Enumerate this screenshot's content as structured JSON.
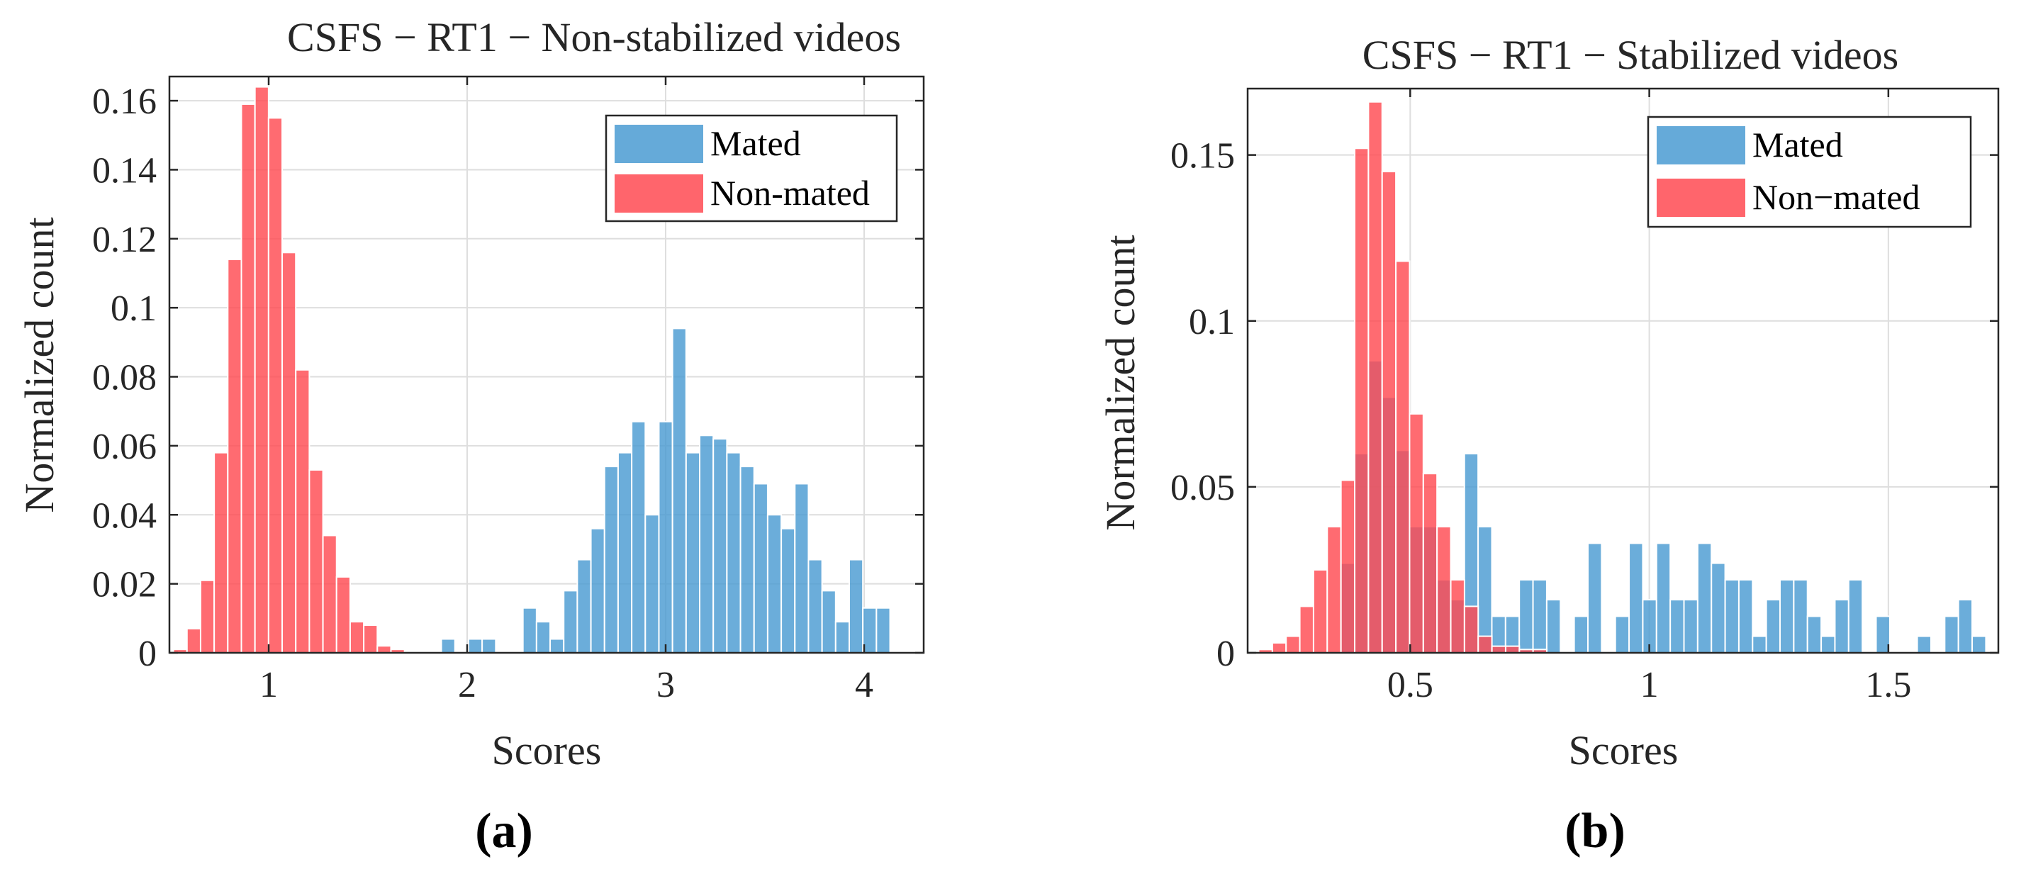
{
  "colors": {
    "mated": "#4a9bd2",
    "non_mated": "#ff4a52",
    "overlap": "#bb2f45"
  },
  "chart_data": [
    {
      "type": "bar",
      "title": "CSFS − RT1 − Non-stabilized videos",
      "xlabel": "Scores",
      "ylabel": "Normalized count",
      "caption": "(a)",
      "xlim": [
        0.5,
        4.3
      ],
      "ylim": [
        0,
        0.167
      ],
      "xticks": [
        1,
        2,
        3,
        4
      ],
      "xtick_labels": [
        "1",
        "2",
        "3",
        "4"
      ],
      "yticks": [
        0,
        0.02,
        0.04,
        0.06,
        0.08,
        0.1,
        0.12,
        0.14,
        0.16
      ],
      "ytick_labels": [
        "0",
        "0.02",
        "0.04",
        "0.06",
        "0.08",
        "0.1",
        "0.12",
        "0.14",
        "0.16"
      ],
      "grid": true,
      "legend_position": "top-right",
      "legend": [
        "Mated",
        "Non-mated"
      ],
      "bin_width": 0.0685,
      "series": [
        {
          "name": "Mated",
          "color": "mated",
          "bin_start": 1.87,
          "values": [
            0.004,
            0,
            0.004,
            0.004,
            0,
            0,
            0.013,
            0.009,
            0.004,
            0.018,
            0.027,
            0.036,
            0.054,
            0.058,
            0.067,
            0.04,
            0.067,
            0.094,
            0.058,
            0.063,
            0.062,
            0.058,
            0.054,
            0.049,
            0.04,
            0.036,
            0.049,
            0.027,
            0.018,
            0.009,
            0.027,
            0.013,
            0.013
          ]
        },
        {
          "name": "Non-mated",
          "color": "non_mated",
          "bin_start": 0.52,
          "values": [
            0.001,
            0.007,
            0.021,
            0.058,
            0.114,
            0.159,
            0.164,
            0.155,
            0.116,
            0.082,
            0.053,
            0.034,
            0.022,
            0.009,
            0.008,
            0.002,
            0.001
          ]
        }
      ]
    },
    {
      "type": "bar",
      "title": "CSFS − RT1 − Stabilized videos",
      "xlabel": "Scores",
      "ylabel": "Normalized count",
      "caption": "(b)",
      "xlim": [
        0.16,
        1.73
      ],
      "ylim": [
        0,
        0.17
      ],
      "xticks": [
        0.5,
        1,
        1.5
      ],
      "xtick_labels": [
        "0.5",
        "1",
        "1.5"
      ],
      "yticks": [
        0,
        0.05,
        0.1,
        0.15
      ],
      "ytick_labels": [
        "0",
        "0.05",
        "0.1",
        "0.15"
      ],
      "grid": true,
      "legend_position": "top-right",
      "legend": [
        "Mated",
        "Non−mated"
      ],
      "bin_width": 0.0287,
      "series": [
        {
          "name": "Mated",
          "color": "mated",
          "bin_start": 0.355,
          "values": [
            0.027,
            0.06,
            0.088,
            0.077,
            0.061,
            0.038,
            0.038,
            0.022,
            0.016,
            0.06,
            0.038,
            0.011,
            0.011,
            0.022,
            0.022,
            0.016,
            0,
            0.011,
            0.033,
            0,
            0.011,
            0.033,
            0.016,
            0.033,
            0.016,
            0.016,
            0.033,
            0.027,
            0.022,
            0.022,
            0.005,
            0.016,
            0.022,
            0.022,
            0.011,
            0.005,
            0.016,
            0.022,
            0,
            0.011,
            0,
            0,
            0.005,
            0,
            0.011,
            0.016,
            0.005
          ]
        },
        {
          "name": "Non−mated",
          "color": "non_mated",
          "bin_start": 0.183,
          "values": [
            0.001,
            0.003,
            0.005,
            0.014,
            0.025,
            0.038,
            0.052,
            0.152,
            0.166,
            0.145,
            0.118,
            0.072,
            0.054,
            0.038,
            0.022,
            0.014,
            0.005,
            0.002,
            0.002,
            0.001,
            0.001
          ]
        }
      ]
    }
  ]
}
